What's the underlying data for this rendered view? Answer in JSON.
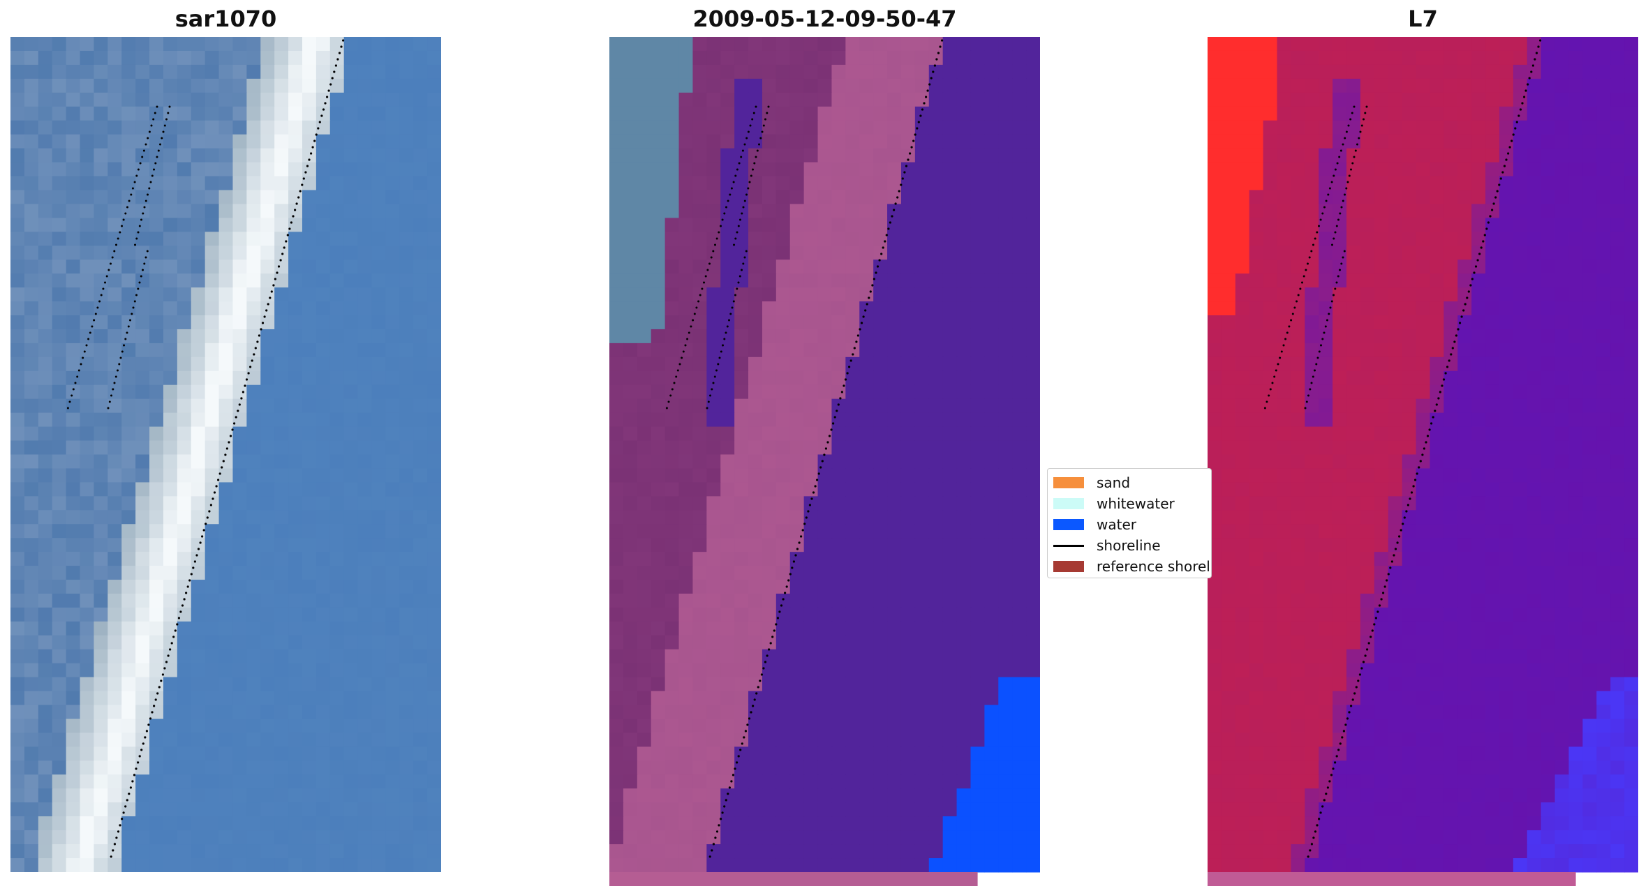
{
  "panels": [
    {
      "id": "rgb",
      "title": "sar1070",
      "color_ramp": [
        "#3f6ea7",
        "#4c7fbc",
        "#5a8bc0",
        "#8fa6b8",
        "#b8c4d8",
        "#e8eef7",
        "#f5f9fb"
      ]
    },
    {
      "id": "classified",
      "title": "2009-05-12-09-50-47",
      "color_ramp": [
        "#52249b",
        "#6b2a8e",
        "#7b3275",
        "#8f3f82",
        "#a8558f",
        "#b55d93",
        "#5f87a6",
        "#0b51ff"
      ]
    },
    {
      "id": "index",
      "title": "L7",
      "color_ramp": [
        "#6314b0",
        "#6b12a8",
        "#8a1d8c",
        "#b91f5a",
        "#c5204f",
        "#d12a45",
        "#ff2d2d",
        "#4a37f7"
      ]
    }
  ],
  "legend": {
    "items": [
      {
        "label": "sand",
        "kind": "patch",
        "color": "#f68f3c"
      },
      {
        "label": "whitewater",
        "kind": "patch",
        "color": "#ccfbf7"
      },
      {
        "label": "water",
        "kind": "patch",
        "color": "#0b58ff"
      },
      {
        "label": "shoreline",
        "kind": "line",
        "color": "#000000"
      },
      {
        "label": "reference shoreline",
        "kind": "patch",
        "color": "#a63a33"
      }
    ]
  }
}
